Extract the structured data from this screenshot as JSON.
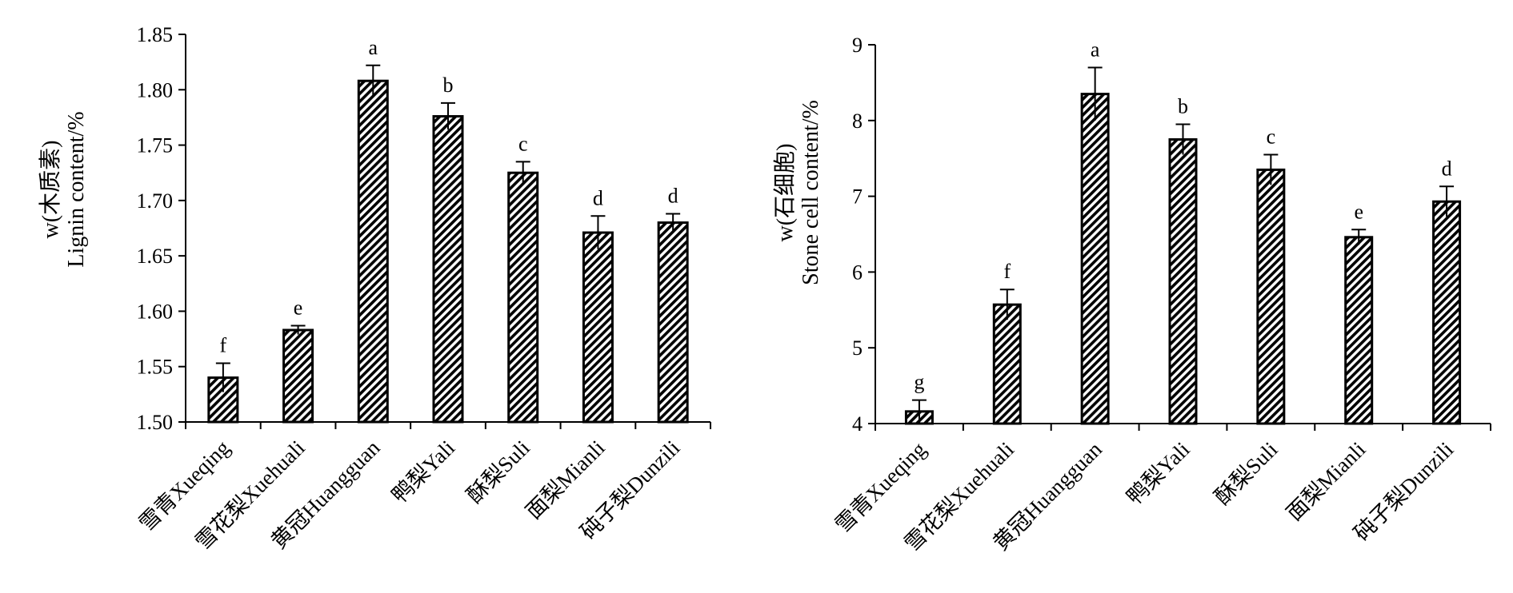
{
  "chart_data": [
    {
      "type": "bar",
      "ylabel_line1": "w(木质素)",
      "ylabel_line2": "Lignin content/%",
      "ylim": [
        1.5,
        1.85
      ],
      "yticks": [
        "1.50",
        "1.55",
        "1.60",
        "1.65",
        "1.70",
        "1.75",
        "1.80",
        "1.85"
      ],
      "categories": [
        "雪青Xueqing",
        "雪花梨Xuehuali",
        "黄冠Huangguan",
        "鸭梨Yali",
        "酥梨Suli",
        "面梨Mianli",
        "砘子梨Dunzili"
      ],
      "values": [
        1.54,
        1.583,
        1.808,
        1.776,
        1.725,
        1.671,
        1.68
      ],
      "errors": [
        0.013,
        0.004,
        0.014,
        0.012,
        0.01,
        0.015,
        0.008
      ],
      "significance": [
        "f",
        "e",
        "a",
        "b",
        "c",
        "d",
        "d"
      ],
      "grid": false,
      "legend": "none"
    },
    {
      "type": "bar",
      "ylabel_line1": "w(石细胞)",
      "ylabel_line2": "Stone cell content/%",
      "ylim": [
        4,
        9
      ],
      "yticks": [
        "4",
        "5",
        "6",
        "7",
        "8",
        "9"
      ],
      "categories": [
        "雪青Xueqing",
        "雪花梨Xuehuali",
        "黄冠Huangguan",
        "鸭梨Yali",
        "酥梨Suli",
        "面梨Mianli",
        "砘子梨Dunzili"
      ],
      "values": [
        4.16,
        5.57,
        8.35,
        7.75,
        7.35,
        6.46,
        6.93
      ],
      "errors": [
        0.15,
        0.2,
        0.35,
        0.2,
        0.2,
        0.1,
        0.2
      ],
      "significance": [
        "g",
        "f",
        "a",
        "b",
        "c",
        "e",
        "d"
      ],
      "grid": false,
      "legend": "none"
    }
  ]
}
